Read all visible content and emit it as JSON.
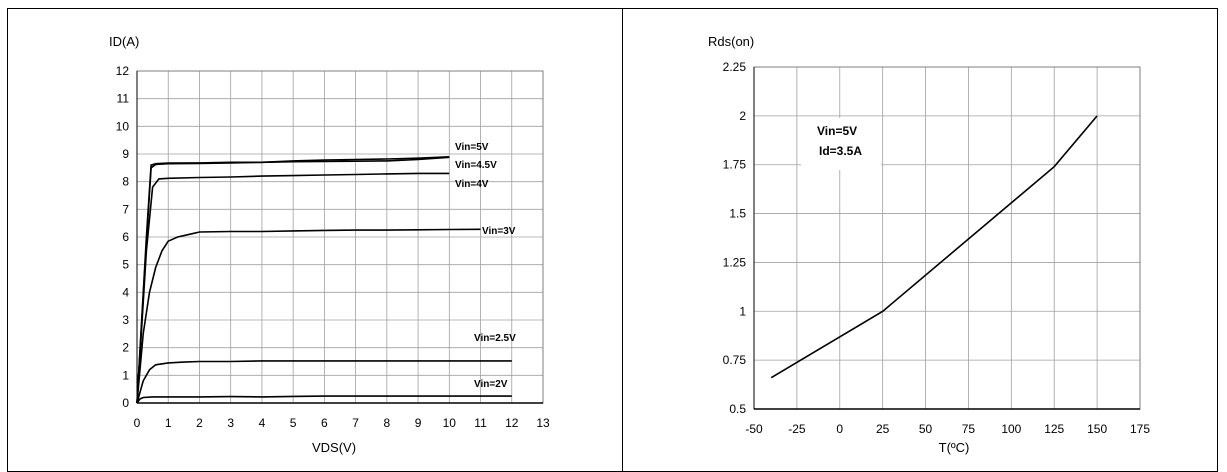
{
  "chart_data": [
    {
      "type": "line",
      "title": "",
      "ylabel": "ID(A)",
      "xlabel": "VDS(V)",
      "xlim": [
        0,
        13
      ],
      "ylim": [
        0,
        12
      ],
      "xticks": [
        "0",
        "1",
        "2",
        "3",
        "4",
        "5",
        "6",
        "7",
        "8",
        "9",
        "10",
        "11",
        "12",
        "13"
      ],
      "yticks": [
        "0",
        "1",
        "2",
        "3",
        "4",
        "5",
        "6",
        "7",
        "8",
        "9",
        "10",
        "11",
        "12"
      ],
      "grid": true,
      "series": [
        {
          "name": "Vin=5V",
          "x": [
            0,
            0.3,
            0.45,
            0.6,
            1,
            2,
            3,
            4,
            5,
            6,
            7,
            8,
            9,
            10
          ],
          "y": [
            0,
            6.0,
            8.6,
            8.65,
            8.67,
            8.68,
            8.7,
            8.7,
            8.75,
            8.78,
            8.8,
            8.82,
            8.85,
            8.9
          ]
        },
        {
          "name": "Vin=4.5V",
          "x": [
            0,
            0.3,
            0.45,
            0.6,
            1,
            2,
            3,
            4,
            5,
            6,
            7,
            8,
            9,
            10
          ],
          "y": [
            0,
            5.8,
            8.5,
            8.62,
            8.65,
            8.66,
            8.68,
            8.7,
            8.72,
            8.73,
            8.74,
            8.75,
            8.8,
            8.88
          ]
        },
        {
          "name": "Vin=4V",
          "x": [
            0,
            0.3,
            0.5,
            0.7,
            1,
            2,
            3,
            4,
            5,
            6,
            7,
            8,
            9,
            10
          ],
          "y": [
            0,
            5.5,
            7.8,
            8.1,
            8.12,
            8.15,
            8.17,
            8.2,
            8.22,
            8.24,
            8.26,
            8.28,
            8.3,
            8.3
          ]
        },
        {
          "name": "Vin=3V",
          "x": [
            0,
            0.2,
            0.4,
            0.6,
            0.8,
            1,
            1.3,
            1.7,
            2,
            3,
            4,
            5,
            6,
            7,
            8,
            9,
            10,
            11
          ],
          "y": [
            0,
            2.5,
            4.0,
            4.9,
            5.5,
            5.85,
            6.0,
            6.1,
            6.18,
            6.2,
            6.2,
            6.22,
            6.24,
            6.25,
            6.25,
            6.26,
            6.27,
            6.28
          ]
        },
        {
          "name": "Vin=2.5V",
          "x": [
            0,
            0.2,
            0.4,
            0.6,
            1,
            1.5,
            2,
            3,
            4,
            5,
            6,
            7,
            8,
            9,
            10,
            11,
            12
          ],
          "y": [
            0,
            0.8,
            1.2,
            1.38,
            1.45,
            1.48,
            1.5,
            1.5,
            1.52,
            1.52,
            1.52,
            1.52,
            1.52,
            1.52,
            1.52,
            1.52,
            1.52
          ]
        },
        {
          "name": "Vin=2V",
          "x": [
            0,
            0.1,
            0.2,
            0.5,
            1,
            2,
            3,
            4,
            5,
            6,
            7,
            8,
            9,
            10,
            11,
            12
          ],
          "y": [
            0,
            0.15,
            0.2,
            0.22,
            0.22,
            0.22,
            0.23,
            0.22,
            0.24,
            0.25,
            0.25,
            0.25,
            0.25,
            0.25,
            0.25,
            0.25
          ]
        }
      ]
    },
    {
      "type": "line",
      "title": "",
      "ylabel": "Rds(on)",
      "xlabel": "T(ºC)",
      "xlim": [
        -50,
        175
      ],
      "ylim": [
        0.5,
        2.25
      ],
      "xticks": [
        "-50",
        "-25",
        "0",
        "25",
        "50",
        "75",
        "100",
        "125",
        "150",
        "175"
      ],
      "yticks": [
        "0.5",
        "0.75",
        "1",
        "1.25",
        "1.5",
        "1.75",
        "2",
        "2.25"
      ],
      "grid": true,
      "annotation": [
        "Vin=5V",
        "Id=3.5A"
      ],
      "series": [
        {
          "x": [
            -40,
            25,
            125,
            150
          ],
          "y": [
            0.66,
            1.0,
            1.74,
            2.0
          ]
        }
      ]
    }
  ]
}
